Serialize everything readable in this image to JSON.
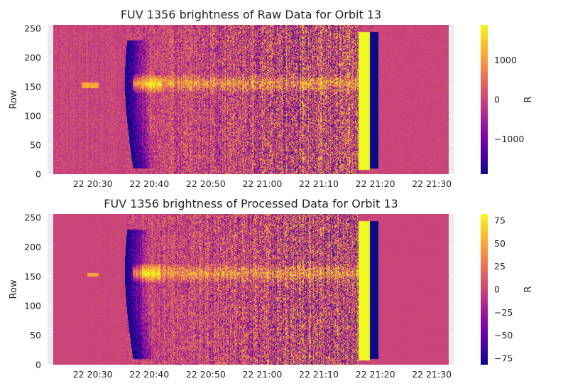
{
  "chart_data": [
    {
      "type": "heatmap",
      "title": "FUV 1356 brightness of Raw Data for Orbit 13",
      "ylabel": "Row",
      "colorbar_label": "R",
      "colormap": "plasma",
      "ylim": [
        0,
        256
      ],
      "y_ticks": [
        0,
        50,
        100,
        150,
        200,
        250
      ],
      "x_range": [
        "22 20:22",
        "22 21:34"
      ],
      "x_tick_labels": [
        "22 20:30",
        "22 20:40",
        "22 20:50",
        "22 21:00",
        "22 21:10",
        "22 21:20",
        "22 21:30"
      ],
      "x_tick_minutes": [
        30,
        40,
        50,
        60,
        70,
        80,
        90
      ],
      "x_data_minutes": [
        23,
        93
      ],
      "clim": [
        -1900,
        1900
      ],
      "colorbar_ticks": [
        1000,
        0,
        -1000
      ],
      "colorbar_tick_labels": [
        "1000",
        "0",
        "−1000"
      ],
      "features": {
        "dark_arc_start_minute": 36,
        "bright_band_rows": [
          140,
          170
        ],
        "saturated_strip_minutes": [
          77.0,
          79.0
        ],
        "dark_strip_minutes": [
          79.0,
          80.5
        ],
        "quiet_after_minute": 80.5
      }
    },
    {
      "type": "heatmap",
      "title": "FUV 1356 brightness of Processed Data for Orbit 13",
      "ylabel": "Row",
      "colorbar_label": "R",
      "colormap": "plasma",
      "ylim": [
        0,
        256
      ],
      "y_ticks": [
        0,
        50,
        100,
        150,
        200,
        250
      ],
      "x_range": [
        "22 20:22",
        "22 21:34"
      ],
      "x_tick_labels": [
        "22 20:30",
        "22 20:40",
        "22 20:50",
        "22 21:00",
        "22 21:10",
        "22 21:20",
        "22 21:30"
      ],
      "x_tick_minutes": [
        30,
        40,
        50,
        60,
        70,
        80,
        90
      ],
      "x_data_minutes": [
        23,
        93
      ],
      "clim": [
        -82,
        82
      ],
      "colorbar_ticks": [
        75,
        50,
        25,
        0,
        -25,
        -50,
        -75
      ],
      "colorbar_tick_labels": [
        "75",
        "50",
        "25",
        "0",
        "−25",
        "−50",
        "−75"
      ],
      "features": {
        "dark_arc_start_minute": 36,
        "bright_band_rows": [
          140,
          170
        ],
        "saturated_strip_minutes": [
          77.0,
          79.0
        ],
        "dark_strip_minutes": [
          79.0,
          80.5
        ],
        "quiet_after_minute": 80.5
      }
    }
  ]
}
